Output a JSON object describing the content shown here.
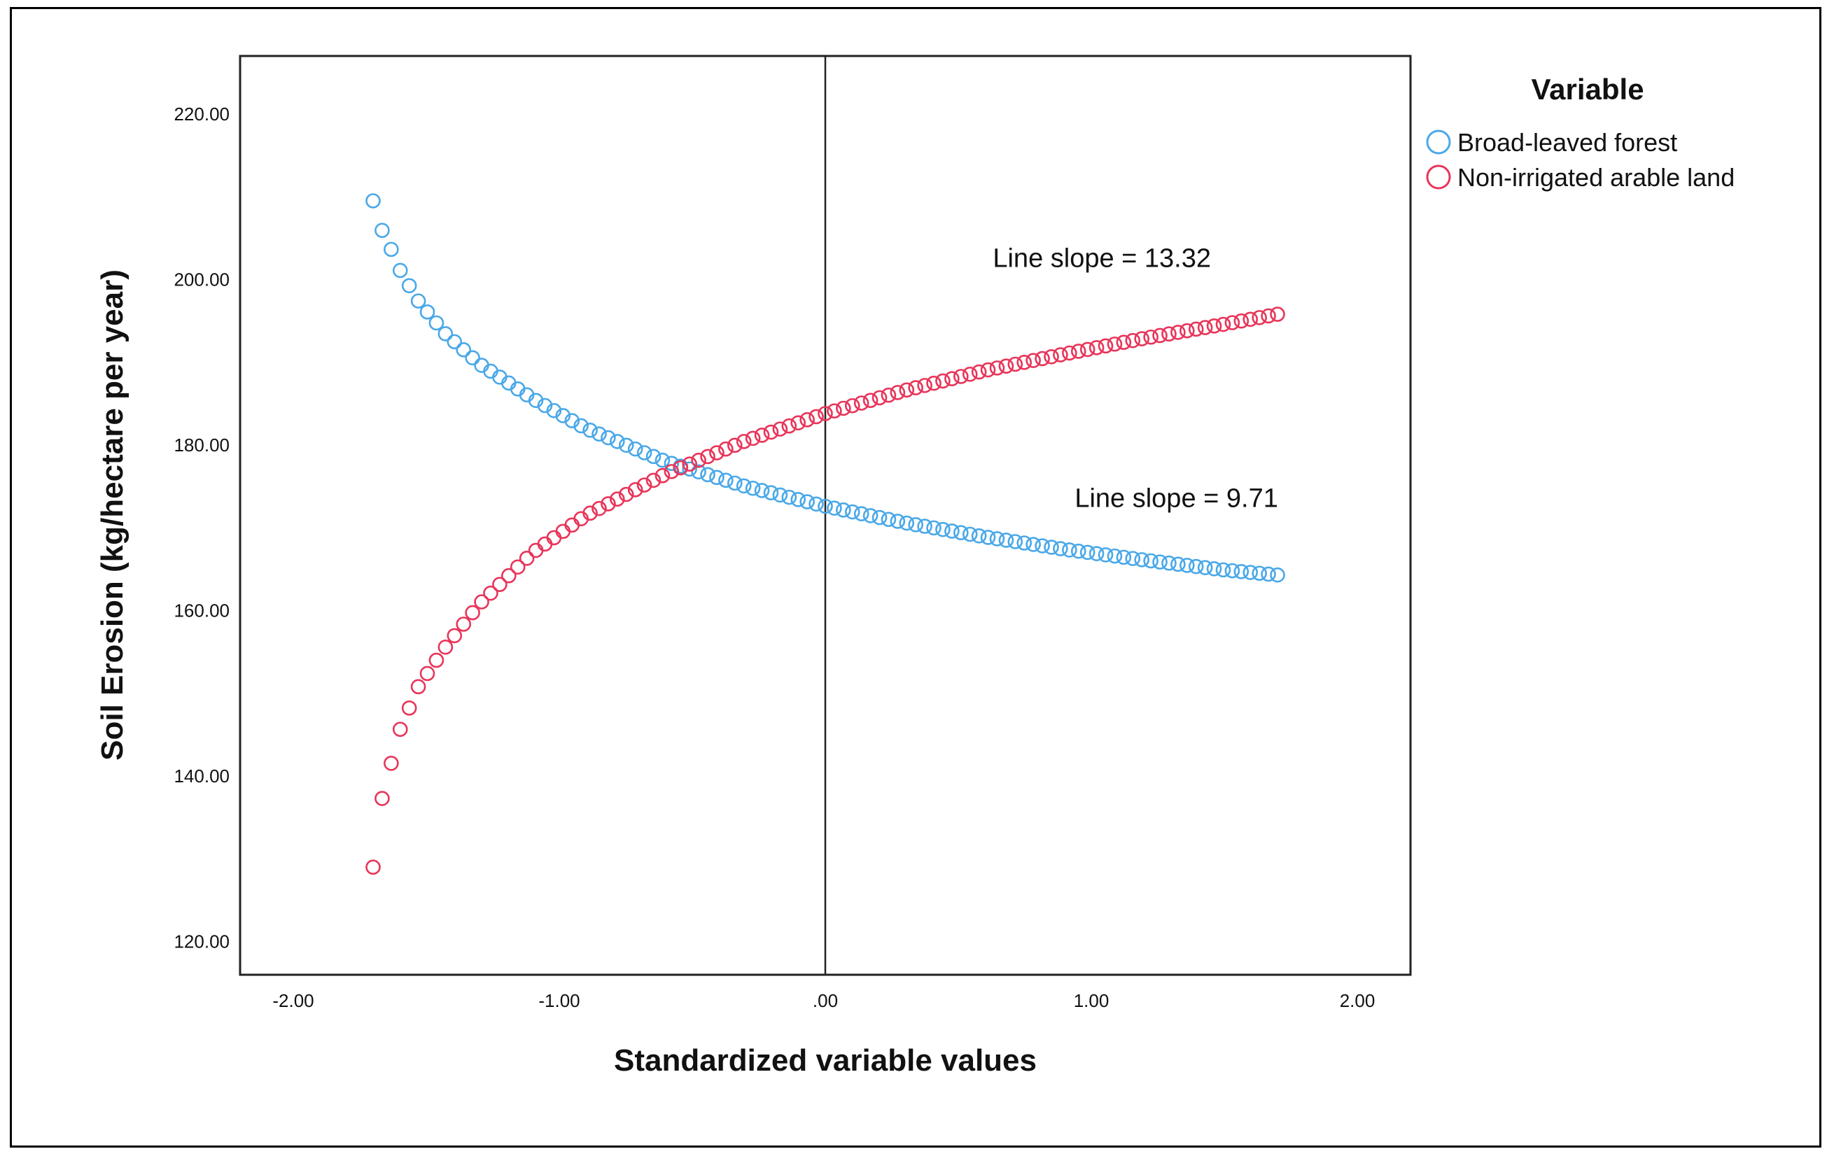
{
  "chart_data": {
    "type": "scatter",
    "xlabel": "Standardized variable values",
    "ylabel": "Soil Erosion (kg/hectare per year)",
    "xlim": [
      -2.2,
      2.2
    ],
    "ylim": [
      116,
      227
    ],
    "x_ticks": [
      -2,
      -1,
      0,
      1,
      2
    ],
    "x_tick_labels": [
      "-2.00",
      "-1.00",
      ".00",
      "1.00",
      "2.00"
    ],
    "y_ticks": [
      120,
      140,
      160,
      180,
      200,
      220
    ],
    "y_tick_labels": [
      "120.00",
      "140.00",
      "160.00",
      "180.00",
      "200.00",
      "220.00"
    ],
    "reference_line_x": 0,
    "grid": false,
    "legend": {
      "title": "Variable",
      "placement": "right",
      "entries": [
        {
          "label": "Broad-leaved forest",
          "color": "#4aa8e8"
        },
        {
          "label": "Non-irrigated arable land",
          "color": "#e8355a"
        }
      ]
    },
    "annotations": [
      {
        "text": "Line slope = 13.32",
        "x": 1.04,
        "y": 201.5
      },
      {
        "text": "Line slope = 9.71",
        "x": 1.32,
        "y": 172.5
      }
    ],
    "series": [
      {
        "name": "Broad-leaved forest",
        "color": "#4aa8e8",
        "marker": "hollow-circle",
        "x_start": -1.7,
        "x_end": 1.7,
        "n_points": 101,
        "points_sampled": [
          [
            -1.7,
            209.5
          ],
          [
            -1.67,
            206.2
          ],
          [
            -1.63,
            203.5
          ],
          [
            -1.6,
            201.2
          ],
          [
            -1.53,
            197.4
          ],
          [
            -1.43,
            193.5
          ],
          [
            -1.3,
            189.8
          ],
          [
            -1.1,
            185.6
          ],
          [
            -0.9,
            182.0
          ],
          [
            -0.6,
            178.0
          ],
          [
            -0.3,
            175.0
          ],
          [
            0.0,
            172.6
          ],
          [
            0.3,
            170.6
          ],
          [
            0.6,
            168.9
          ],
          [
            0.9,
            167.4
          ],
          [
            1.2,
            166.1
          ],
          [
            1.5,
            164.9
          ],
          [
            1.7,
            164.3
          ]
        ]
      },
      {
        "name": "Non-irrigated arable land",
        "color": "#e8355a",
        "marker": "hollow-circle",
        "x_start": -1.7,
        "x_end": 1.7,
        "n_points": 101,
        "points_sampled": [
          [
            -1.7,
            129.0
          ],
          [
            -1.67,
            136.8
          ],
          [
            -1.63,
            141.8
          ],
          [
            -1.6,
            145.5
          ],
          [
            -1.53,
            150.8
          ],
          [
            -1.43,
            155.5
          ],
          [
            -1.3,
            160.8
          ],
          [
            -1.1,
            167.0
          ],
          [
            -0.9,
            171.5
          ],
          [
            -0.6,
            176.5
          ],
          [
            -0.3,
            180.5
          ],
          [
            0.0,
            183.8
          ],
          [
            0.3,
            186.6
          ],
          [
            0.6,
            189.0
          ],
          [
            0.9,
            191.0
          ],
          [
            1.2,
            192.9
          ],
          [
            1.5,
            194.6
          ],
          [
            1.7,
            195.8
          ]
        ]
      }
    ]
  }
}
